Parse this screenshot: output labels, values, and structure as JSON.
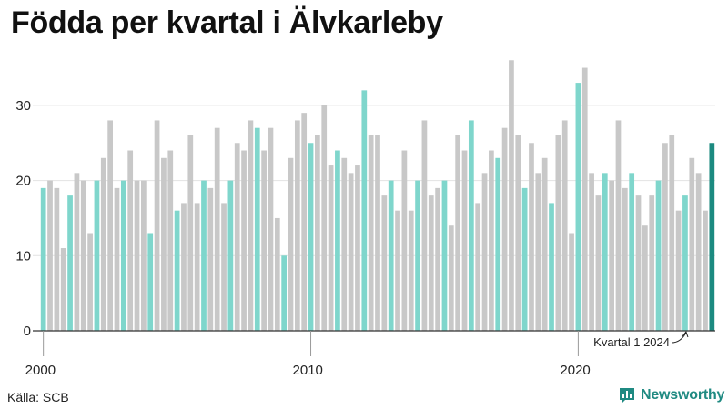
{
  "chart_data": {
    "type": "bar",
    "title": "Födda per kvartal i Älvkarleby",
    "xlabel": "",
    "ylabel": "",
    "ylim": [
      0,
      37
    ],
    "yticks": [
      0,
      10,
      20,
      30
    ],
    "x_tick_labels": [
      {
        "label": "2000",
        "year": 2000
      },
      {
        "label": "2010",
        "year": 2010
      },
      {
        "label": "2020",
        "year": 2020
      }
    ],
    "start_year": 2000,
    "highlight_quarter": 1,
    "colors": {
      "q1": "#7fd6cc",
      "other": "#c8c8c8",
      "latest": "#1c8a80",
      "axis": "#333333",
      "grid": "#e2e2e2"
    },
    "values": [
      19,
      20,
      19,
      11,
      18,
      21,
      20,
      13,
      20,
      23,
      28,
      19,
      20,
      24,
      20,
      20,
      13,
      28,
      23,
      24,
      16,
      17,
      26,
      17,
      20,
      19,
      27,
      17,
      20,
      25,
      24,
      28,
      27,
      24,
      27,
      15,
      10,
      23,
      28,
      29,
      25,
      26,
      30,
      22,
      24,
      23,
      21,
      22,
      32,
      26,
      26,
      18,
      20,
      16,
      24,
      16,
      20,
      28,
      18,
      19,
      20,
      14,
      26,
      24,
      28,
      17,
      21,
      24,
      23,
      27,
      36,
      26,
      19,
      25,
      21,
      23,
      17,
      26,
      28,
      13,
      33,
      35,
      21,
      18,
      21,
      20,
      28,
      19,
      21,
      18,
      14,
      18,
      20,
      25,
      26,
      16,
      18,
      23,
      21,
      16,
      25
    ],
    "annotation": "Kvartal 1 2024",
    "source": "Källa: SCB"
  },
  "brand": {
    "name": "Newsworthy",
    "icon": "bar-chart-speech-icon"
  }
}
